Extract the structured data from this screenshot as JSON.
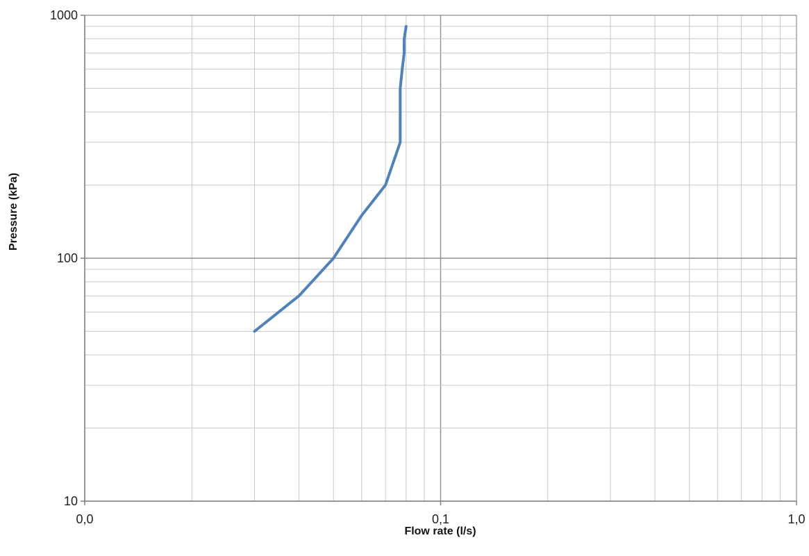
{
  "chart_data": {
    "type": "line",
    "xlabel": "Flow rate (l/s)",
    "ylabel": "Pressure (kPa)",
    "x_scale": "log",
    "y_scale": "log",
    "xlim": [
      0.01,
      1.0
    ],
    "ylim": [
      10,
      1000
    ],
    "x_tick_values": [
      0.01,
      0.1,
      1.0
    ],
    "x_tick_labels": [
      "0,0",
      "0,1",
      "1,0"
    ],
    "y_tick_values": [
      10,
      100,
      1000
    ],
    "y_tick_labels": [
      "10",
      "100",
      "1000"
    ],
    "grid": true,
    "series": [
      {
        "color": "#4f81bd",
        "x": [
          0.03,
          0.04,
          0.05,
          0.06,
          0.07,
          0.077,
          0.077,
          0.077,
          0.078,
          0.079,
          0.079,
          0.08
        ],
        "y": [
          50,
          70,
          100,
          150,
          200,
          300,
          400,
          500,
          600,
          700,
          800,
          900
        ]
      }
    ]
  }
}
